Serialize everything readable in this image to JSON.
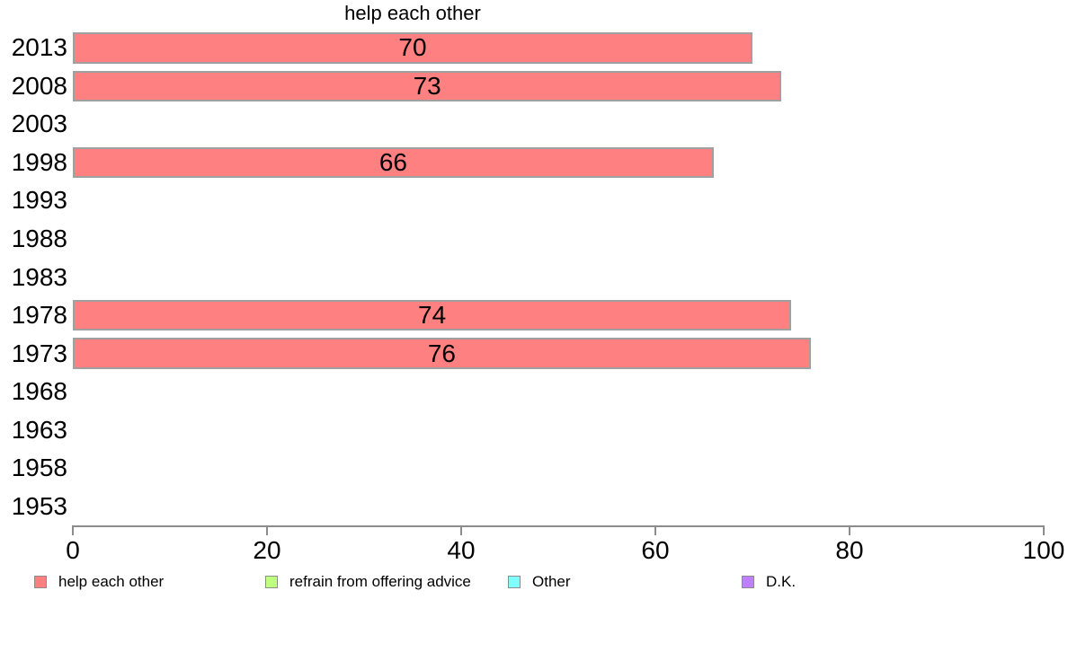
{
  "chart_data": {
    "type": "bar",
    "orientation": "horizontal",
    "title": "help each other",
    "categories": [
      "2013",
      "2008",
      "2003",
      "1998",
      "1993",
      "1988",
      "1983",
      "1978",
      "1973",
      "1968",
      "1963",
      "1958",
      "1953"
    ],
    "values": [
      70,
      73,
      null,
      66,
      null,
      null,
      null,
      74,
      76,
      null,
      null,
      null,
      null
    ],
    "xlim": [
      0,
      100
    ],
    "x_ticks": [
      0,
      20,
      40,
      60,
      80,
      100
    ],
    "grid": false,
    "bar_color": "#FF8080",
    "bar_border_color": "#A0A0A0",
    "axis_color": "#8C8C8C",
    "legend_position": "bottom",
    "legend": [
      {
        "label": "help each other",
        "color": "#FF8080"
      },
      {
        "label": "refrain from offering advice",
        "color": "#BFFF80"
      },
      {
        "label": "Other",
        "color": "#80FFFF"
      },
      {
        "label": "D.K.",
        "color": "#BF80FF"
      }
    ]
  }
}
